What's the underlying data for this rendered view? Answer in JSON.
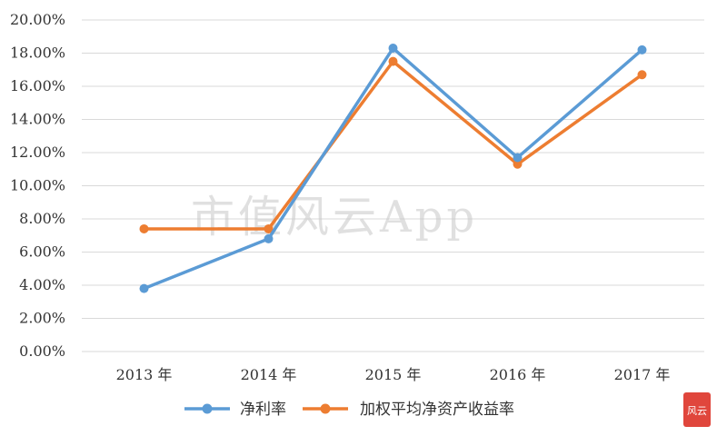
{
  "chart_data": {
    "type": "line",
    "categories": [
      "2013 年",
      "2014 年",
      "2015 年",
      "2016 年",
      "2017 年"
    ],
    "series": [
      {
        "name": "净利率",
        "values": [
          3.8,
          6.8,
          18.3,
          11.7,
          18.2
        ],
        "color": "#5b9bd5"
      },
      {
        "name": "加权平均净资产收益率",
        "values": [
          7.4,
          7.4,
          17.5,
          11.3,
          16.7
        ],
        "color": "#ed7d31"
      }
    ],
    "ylim": [
      0,
      20
    ],
    "yticks": [
      "0.00%",
      "2.00%",
      "4.00%",
      "6.00%",
      "8.00%",
      "10.00%",
      "12.00%",
      "14.00%",
      "16.00%",
      "18.00%",
      "20.00%"
    ],
    "grid": true,
    "legend_position": "bottom"
  },
  "watermark": "市值风云App",
  "logo_text": "风云"
}
